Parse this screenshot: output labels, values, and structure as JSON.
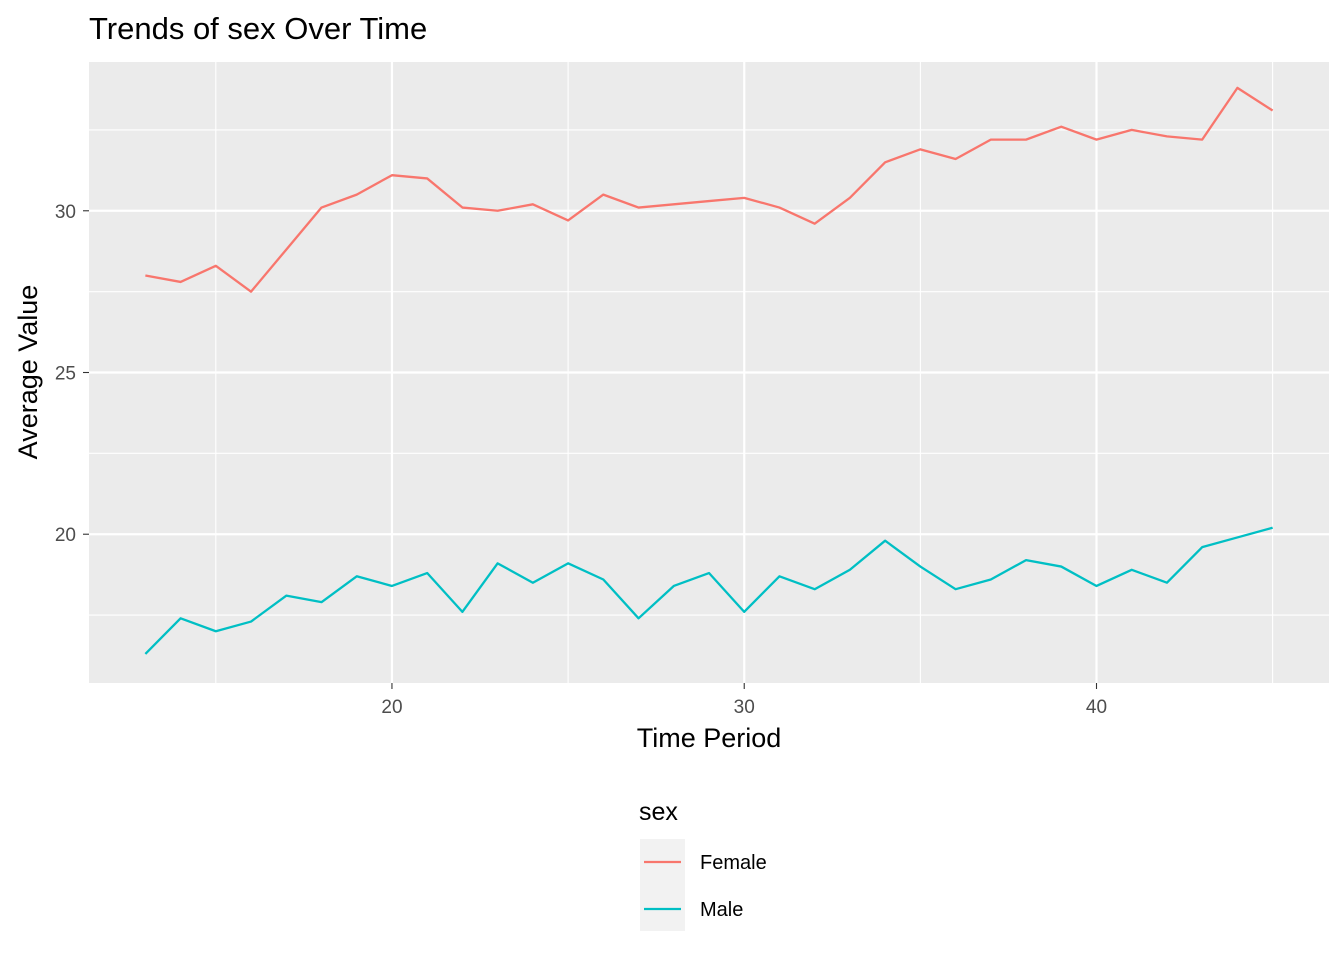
{
  "chart_data": {
    "type": "line",
    "title": "Trends of sex Over Time",
    "xlabel": "Time Period",
    "ylabel": "Average Value",
    "xlim": [
      11.4,
      46.6
    ],
    "ylim": [
      15.4,
      34.6
    ],
    "x_ticks": [
      20,
      30,
      40
    ],
    "y_ticks": [
      20,
      25,
      30
    ],
    "grid": true,
    "legend": {
      "title": "sex",
      "placement": "bottom"
    },
    "x": [
      13,
      14,
      15,
      16,
      17,
      18,
      19,
      20,
      21,
      22,
      23,
      24,
      25,
      26,
      27,
      28,
      29,
      30,
      31,
      32,
      33,
      34,
      35,
      36,
      37,
      38,
      39,
      40,
      41,
      42,
      43,
      44,
      45
    ],
    "series": [
      {
        "name": "Female",
        "color": "#F8766D",
        "values": [
          28.0,
          27.8,
          28.3,
          27.5,
          28.8,
          30.1,
          30.5,
          31.1,
          31.0,
          30.1,
          30.0,
          30.2,
          29.7,
          30.5,
          30.1,
          30.2,
          30.3,
          30.4,
          30.1,
          29.6,
          30.4,
          31.5,
          31.9,
          31.6,
          32.2,
          32.2,
          32.6,
          32.2,
          32.5,
          32.3,
          32.2,
          33.8,
          33.1
        ]
      },
      {
        "name": "Male",
        "color": "#00BFC4",
        "values": [
          16.3,
          17.4,
          17.0,
          17.3,
          18.1,
          17.9,
          18.7,
          18.4,
          18.8,
          17.6,
          19.1,
          18.5,
          19.1,
          18.6,
          17.4,
          18.4,
          18.8,
          17.6,
          18.7,
          18.3,
          18.9,
          19.8,
          19.0,
          18.3,
          18.6,
          19.2,
          19.0,
          18.4,
          18.9,
          18.5,
          19.6,
          19.9,
          20.2
        ]
      }
    ]
  },
  "colors": {
    "panel_background": "#EBEBEB",
    "grid_line": "#FFFFFF",
    "legend_key_background": "#F2F2F2"
  }
}
